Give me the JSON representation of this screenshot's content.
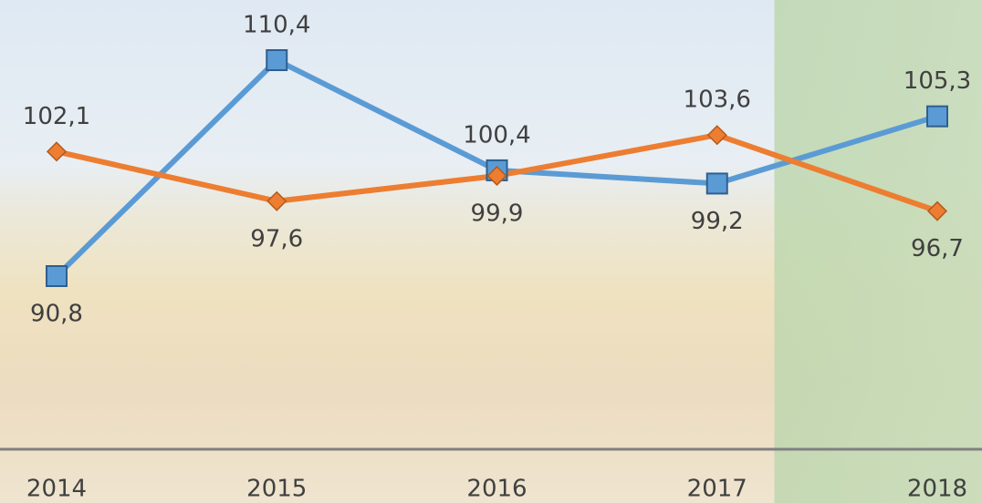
{
  "chart_data": {
    "type": "line",
    "categories": [
      "2014",
      "2015",
      "2016",
      "2017",
      "2018"
    ],
    "series": [
      {
        "color": "#5b9bd5",
        "marker": "square",
        "values": [
          90.8,
          110.4,
          100.4,
          99.2,
          105.3
        ],
        "value_labels": [
          "90,8",
          "110,4",
          "100,4",
          "99,2",
          "105,3"
        ]
      },
      {
        "color": "#ed7d31",
        "marker": "diamond",
        "values": [
          102.1,
          97.6,
          99.9,
          103.6,
          96.7
        ],
        "value_labels": [
          "102,1",
          "97,6",
          "99,9",
          "103,6",
          "96,7"
        ]
      }
    ]
  }
}
